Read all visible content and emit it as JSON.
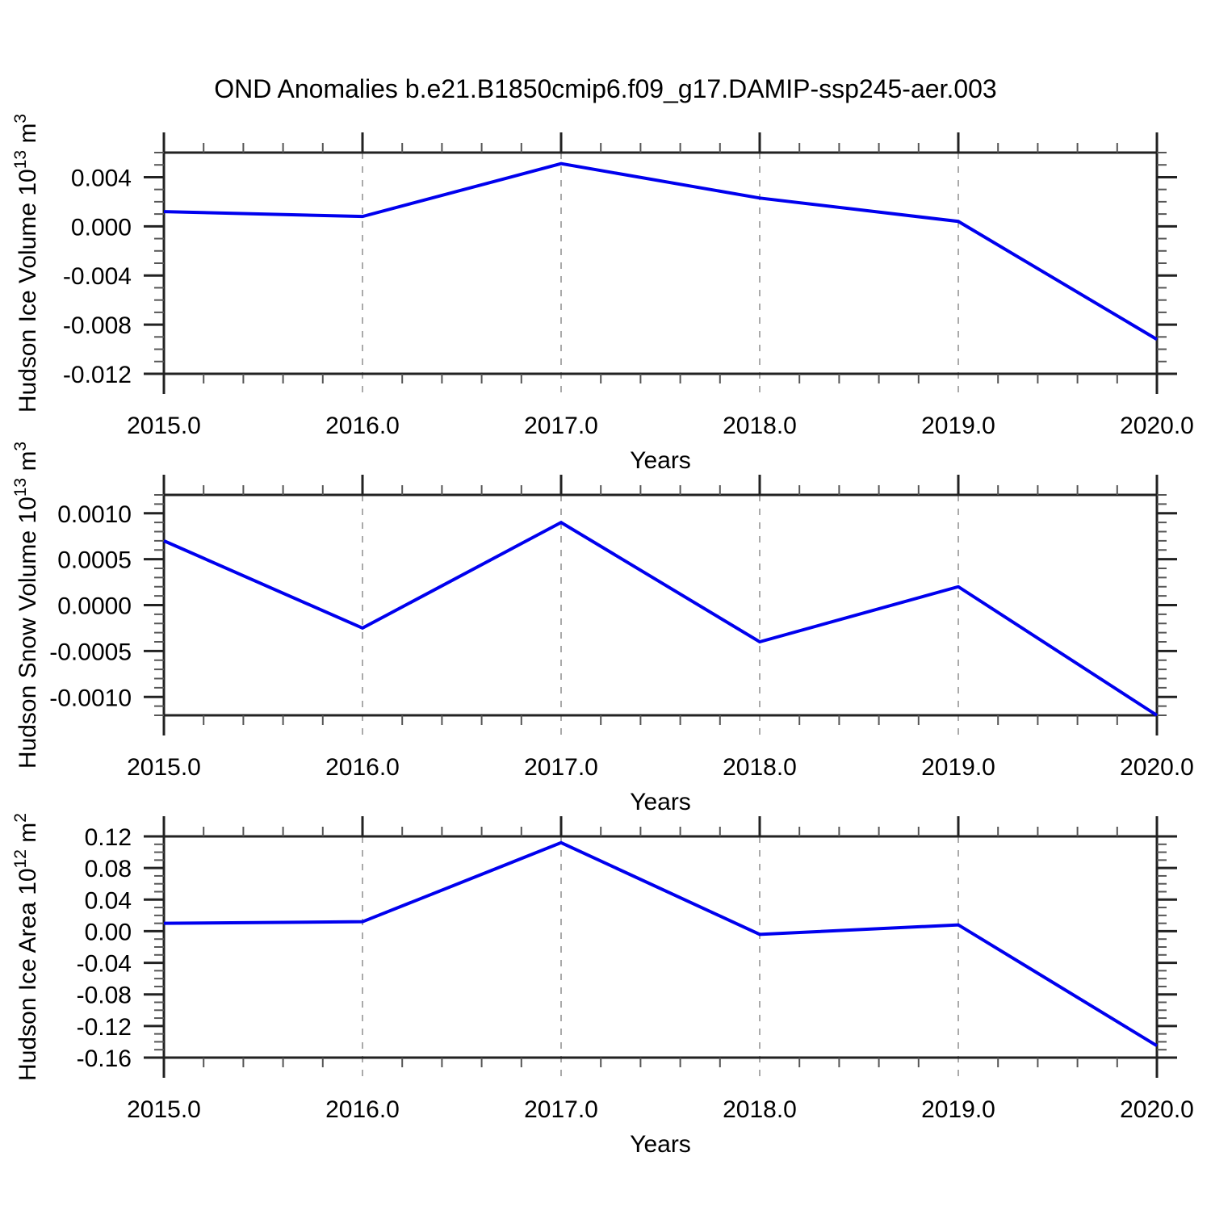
{
  "title": "OND Anomalies b.e21.B1850cmip6.f09_g17.DAMIP-ssp245-aer.003",
  "colors": {
    "line": "#0000EE",
    "grid": "#AAAAAA",
    "axis": "#222222",
    "minor_tick": "#555555",
    "text": "#000000"
  },
  "chart_data": [
    {
      "type": "line",
      "ylabel": "Hudson Ice Volume 10^13 m^3",
      "ylabel_parts": [
        {
          "text": "Hudson Ice Volume 10",
          "sup": false
        },
        {
          "text": "13",
          "sup": true
        },
        {
          "text": " m",
          "sup": false
        },
        {
          "text": "3",
          "sup": true
        }
      ],
      "xlabel": "Years",
      "x": [
        2015,
        2016,
        2017,
        2018,
        2019,
        2020
      ],
      "x_tick_labels": [
        "2015.0",
        "2016.0",
        "2017.0",
        "2018.0",
        "2019.0",
        "2020.0"
      ],
      "x_minor_step": 0.2,
      "grid_years": [
        2016,
        2017,
        2018,
        2019
      ],
      "values": [
        0.0012,
        0.0008,
        0.0051,
        0.0023,
        0.0004,
        -0.0092
      ],
      "ylim": [
        -0.012,
        0.006
      ],
      "y_major_step": 0.004,
      "y_minor_step": 0.001,
      "y_tick_labels": [
        {
          "value": 0.004,
          "label": "0.004"
        },
        {
          "value": 0.0,
          "label": "0.000"
        },
        {
          "value": -0.004,
          "label": "-0.004"
        },
        {
          "value": -0.008,
          "label": "-0.008"
        },
        {
          "value": -0.012,
          "label": "-0.012"
        }
      ]
    },
    {
      "type": "line",
      "ylabel": "Hudson Snow Volume 10^13 m^3",
      "ylabel_parts": [
        {
          "text": "Hudson Snow Volume 10",
          "sup": false
        },
        {
          "text": "13",
          "sup": true
        },
        {
          "text": " m",
          "sup": false
        },
        {
          "text": "3",
          "sup": true
        }
      ],
      "xlabel": "Years",
      "x": [
        2015,
        2016,
        2017,
        2018,
        2019,
        2020
      ],
      "x_tick_labels": [
        "2015.0",
        "2016.0",
        "2017.0",
        "2018.0",
        "2019.0",
        "2020.0"
      ],
      "x_minor_step": 0.2,
      "grid_years": [
        2016,
        2017,
        2018,
        2019
      ],
      "values": [
        0.0007,
        -0.00025,
        0.0009,
        -0.0004,
        0.0002,
        -0.0012
      ],
      "ylim": [
        -0.0012,
        0.0012
      ],
      "y_major_step": 0.0005,
      "y_minor_step": 0.0001,
      "y_tick_labels": [
        {
          "value": 0.001,
          "label": "0.0010"
        },
        {
          "value": 0.0005,
          "label": "0.0005"
        },
        {
          "value": 0.0,
          "label": "0.0000"
        },
        {
          "value": -0.0005,
          "label": "-0.0005"
        },
        {
          "value": -0.001,
          "label": "-0.0010"
        }
      ]
    },
    {
      "type": "line",
      "ylabel": "Hudson Ice Area 10^12 m^2",
      "ylabel_parts": [
        {
          "text": "Hudson Ice Area 10",
          "sup": false
        },
        {
          "text": "12",
          "sup": true
        },
        {
          "text": " m",
          "sup": false
        },
        {
          "text": "2",
          "sup": true
        }
      ],
      "xlabel": "Years",
      "x": [
        2015,
        2016,
        2017,
        2018,
        2019,
        2020
      ],
      "x_tick_labels": [
        "2015.0",
        "2016.0",
        "2017.0",
        "2018.0",
        "2019.0",
        "2020.0"
      ],
      "x_minor_step": 0.2,
      "grid_years": [
        2016,
        2017,
        2018,
        2019
      ],
      "values": [
        0.01,
        0.012,
        0.112,
        -0.004,
        0.008,
        -0.145
      ],
      "ylim": [
        -0.16,
        0.12
      ],
      "y_major_step": 0.04,
      "y_minor_step": 0.01,
      "y_tick_labels": [
        {
          "value": 0.12,
          "label": "0.12"
        },
        {
          "value": 0.08,
          "label": "0.08"
        },
        {
          "value": 0.04,
          "label": "0.04"
        },
        {
          "value": 0.0,
          "label": "0.00"
        },
        {
          "value": -0.04,
          "label": "-0.04"
        },
        {
          "value": -0.08,
          "label": "-0.08"
        },
        {
          "value": -0.12,
          "label": "-0.12"
        },
        {
          "value": -0.16,
          "label": "-0.16"
        }
      ]
    }
  ]
}
